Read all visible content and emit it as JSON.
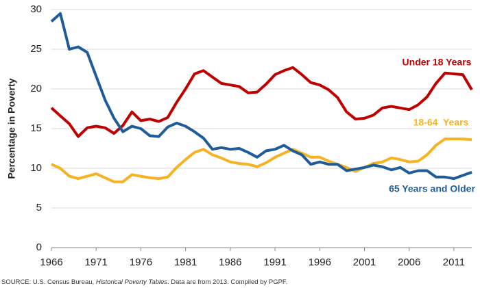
{
  "chart_data": {
    "type": "line",
    "y_label": "Percentage in Poverty",
    "x": [
      1966,
      1967,
      1968,
      1969,
      1970,
      1971,
      1972,
      1973,
      1974,
      1975,
      1976,
      1977,
      1978,
      1979,
      1980,
      1981,
      1982,
      1983,
      1984,
      1985,
      1986,
      1987,
      1988,
      1989,
      1990,
      1991,
      1992,
      1993,
      1994,
      1995,
      1996,
      1997,
      1998,
      1999,
      2000,
      2001,
      2002,
      2003,
      2004,
      2005,
      2006,
      2007,
      2008,
      2009,
      2010,
      2011,
      2012,
      2013
    ],
    "xlim": [
      1966,
      2013
    ],
    "xticks": [
      1966,
      1971,
      1976,
      1981,
      1986,
      1991,
      1996,
      2001,
      2006,
      2011
    ],
    "ylim": [
      0,
      30
    ],
    "yticks": [
      0,
      5,
      10,
      15,
      20,
      25,
      30
    ],
    "grid": true,
    "series": [
      {
        "name": "Under 18 Years",
        "color": "#c00000",
        "values": [
          17.6,
          16.6,
          15.6,
          14.0,
          15.1,
          15.3,
          15.1,
          14.4,
          15.4,
          17.1,
          16.0,
          16.2,
          15.9,
          16.4,
          18.3,
          20.0,
          21.9,
          22.3,
          21.5,
          20.7,
          20.5,
          20.3,
          19.5,
          19.6,
          20.6,
          21.8,
          22.3,
          22.7,
          21.8,
          20.8,
          20.5,
          19.9,
          18.9,
          17.1,
          16.2,
          16.3,
          16.7,
          17.6,
          17.8,
          17.6,
          17.4,
          18.0,
          19.0,
          20.7,
          22.0,
          21.9,
          21.8,
          19.9
        ]
      },
      {
        "name": "18-64  Years",
        "color": "#f5b324",
        "values": [
          10.5,
          10.0,
          9.0,
          8.7,
          9.0,
          9.3,
          8.8,
          8.3,
          8.3,
          9.2,
          9.0,
          8.8,
          8.7,
          8.9,
          10.1,
          11.1,
          12.0,
          12.4,
          11.7,
          11.3,
          10.8,
          10.6,
          10.5,
          10.2,
          10.7,
          11.4,
          11.9,
          12.4,
          11.9,
          11.4,
          11.4,
          10.9,
          10.5,
          10.1,
          9.6,
          10.1,
          10.6,
          10.8,
          11.3,
          11.1,
          10.8,
          10.9,
          11.7,
          12.9,
          13.7,
          13.7,
          13.7,
          13.6
        ]
      },
      {
        "name": "65 Years and Older",
        "color": "#1f5c99",
        "values": [
          28.5,
          29.5,
          25.0,
          25.3,
          24.6,
          21.6,
          18.6,
          16.3,
          14.6,
          15.3,
          15.0,
          14.1,
          14.0,
          15.2,
          15.7,
          15.3,
          14.6,
          13.8,
          12.4,
          12.6,
          12.4,
          12.5,
          12.0,
          11.4,
          12.2,
          12.4,
          12.9,
          12.2,
          11.7,
          10.5,
          10.8,
          10.5,
          10.5,
          9.7,
          9.9,
          10.1,
          10.4,
          10.2,
          9.8,
          10.1,
          9.4,
          9.7,
          9.7,
          8.9,
          8.9,
          8.7,
          9.1,
          9.5
        ]
      }
    ],
    "source": {
      "prefix": "SOURCE:  U.S. Census Bureau, ",
      "italic": "Historical Poverty Tables",
      "suffix": ". Data are from 2013. Compiled by PGPF."
    }
  }
}
